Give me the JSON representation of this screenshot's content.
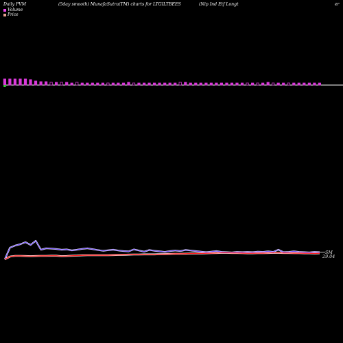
{
  "header": {
    "period": "Daily PVM",
    "method": "(5day smooth) MunafaSutra(TM) charts for LTGILTBEES",
    "name": "(Nip Ind Etf Longt",
    "suffix": "er"
  },
  "legend": {
    "volume_label": "Volume",
    "price_label": "Price",
    "volume_color": "#ee44ee",
    "price_color": "#e8a090"
  },
  "labels": {
    "sm_label": "SM",
    "price_value": "29.04"
  },
  "colors": {
    "background": "#000000",
    "baseline": "#ffffff",
    "volume_up": "#d93ad9",
    "volume_down": "#33cc33",
    "price_line": "#ff1e1e",
    "smooth_line": "#7755ff",
    "price_fill": "#ffffff"
  },
  "chart_data": {
    "type": "bar",
    "title": "",
    "series": [
      {
        "name": "Volume",
        "values": [
          9,
          9,
          9,
          9,
          9,
          8,
          6,
          5,
          5,
          4,
          4,
          4,
          4,
          3,
          4,
          3,
          3,
          3,
          3,
          3,
          3,
          3,
          3,
          3,
          4,
          3,
          3,
          3,
          3,
          3,
          3,
          3,
          3,
          3,
          4,
          4,
          3,
          3,
          3,
          3,
          3,
          3,
          3,
          3,
          3,
          3,
          3,
          3,
          3,
          3,
          3,
          4,
          3,
          3,
          3,
          3,
          3,
          3,
          3,
          3,
          3,
          3
        ],
        "down": [
          0,
          0,
          0,
          0,
          0,
          0,
          0,
          0,
          0,
          1,
          0,
          1,
          0,
          0,
          1,
          0,
          0,
          0,
          0,
          0,
          1,
          0,
          0,
          0,
          0,
          1,
          0,
          0,
          0,
          0,
          0,
          0,
          0,
          0,
          1,
          0,
          0,
          0,
          0,
          0,
          0,
          0,
          0,
          0,
          0,
          0,
          0,
          1,
          0,
          1,
          0,
          0,
          1,
          0,
          0,
          1,
          0,
          0,
          0,
          0,
          0,
          0
        ],
        "first_bar_down": true
      },
      {
        "name": "Price",
        "values": [
          28.6,
          28.8,
          28.85,
          28.85,
          28.84,
          28.83,
          28.84,
          28.85,
          28.85,
          28.86,
          28.86,
          28.83,
          28.84,
          28.86,
          28.87,
          28.89,
          28.9,
          28.9,
          28.9,
          28.9,
          28.9,
          28.91,
          28.92,
          28.93,
          28.94,
          28.95,
          28.95,
          28.96,
          28.96,
          28.96,
          28.97,
          28.98,
          28.99,
          29.0,
          29.0,
          29.01,
          29.02,
          29.03,
          29.03,
          29.04,
          29.05,
          29.06,
          29.07,
          29.07,
          29.06,
          29.06,
          29.05,
          29.04,
          29.04,
          29.05,
          29.05,
          29.06,
          29.07,
          29.07,
          29.06,
          29.06,
          29.05,
          29.05,
          29.04,
          29.04,
          29.03,
          29.04
        ]
      },
      {
        "name": "SM",
        "values": [
          28.6,
          29.45,
          29.6,
          29.7,
          29.85,
          29.65,
          29.95,
          29.3,
          29.4,
          29.38,
          29.35,
          29.3,
          29.32,
          29.25,
          29.3,
          29.36,
          29.4,
          29.34,
          29.28,
          29.22,
          29.26,
          29.3,
          29.24,
          29.2,
          29.18,
          29.32,
          29.24,
          29.16,
          29.28,
          29.22,
          29.18,
          29.14,
          29.2,
          29.24,
          29.2,
          29.28,
          29.24,
          29.2,
          29.16,
          29.12,
          29.16,
          29.2,
          29.14,
          29.12,
          29.1,
          29.14,
          29.12,
          29.14,
          29.12,
          29.16,
          29.14,
          29.18,
          29.14,
          29.3,
          29.12,
          29.14,
          29.18,
          29.14,
          29.12,
          29.1,
          29.14,
          29.12
        ]
      }
    ]
  }
}
